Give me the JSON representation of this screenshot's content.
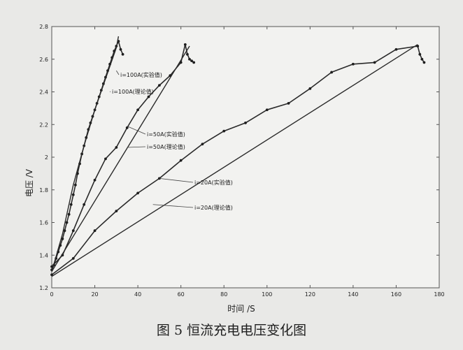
{
  "caption": "图 5   恒流充电电压变化图",
  "chart_data": {
    "type": "line",
    "xlabel": "时间 /S",
    "ylabel": "电压 /V",
    "xlim": [
      0,
      180
    ],
    "ylim": [
      1.2,
      2.8
    ],
    "xticks": [
      "0",
      "20",
      "40",
      "60",
      "80",
      "100",
      "120",
      "140",
      "160",
      "180"
    ],
    "yticks": [
      "1.2",
      "1.4",
      "1.6",
      "1.8",
      "2",
      "2.2",
      "2.4",
      "2.6",
      "2.8"
    ],
    "grid": false,
    "legend": "inline labels",
    "series": [
      {
        "name": "i=100A(实验值)",
        "x": [
          0,
          1,
          2,
          3,
          4,
          5,
          6,
          7,
          8,
          9,
          10,
          11,
          12,
          13,
          14,
          15,
          16,
          17,
          18,
          19,
          20,
          21,
          22,
          23,
          24,
          25,
          26,
          27,
          28,
          29,
          30,
          31,
          32,
          33
        ],
        "y": [
          1.31,
          1.34,
          1.38,
          1.42,
          1.46,
          1.5,
          1.55,
          1.6,
          1.65,
          1.71,
          1.77,
          1.83,
          1.9,
          1.96,
          2.02,
          2.07,
          2.12,
          2.17,
          2.21,
          2.25,
          2.29,
          2.33,
          2.37,
          2.41,
          2.45,
          2.49,
          2.53,
          2.57,
          2.61,
          2.65,
          2.68,
          2.71,
          2.66,
          2.63
        ]
      },
      {
        "name": "i=100A(理论值)",
        "x": [
          0,
          5,
          10,
          15,
          20,
          25,
          30,
          31
        ],
        "y": [
          1.3,
          1.53,
          1.83,
          2.07,
          2.29,
          2.48,
          2.67,
          2.74
        ]
      },
      {
        "name": "i=50A(实验值)",
        "x": [
          0,
          5,
          10,
          15,
          20,
          25,
          30,
          35,
          40,
          45,
          50,
          55,
          60,
          62,
          63,
          64,
          65,
          66
        ],
        "y": [
          1.33,
          1.4,
          1.55,
          1.71,
          1.86,
          1.99,
          2.06,
          2.18,
          2.29,
          2.37,
          2.44,
          2.5,
          2.58,
          2.69,
          2.63,
          2.6,
          2.59,
          2.58
        ]
      },
      {
        "name": "i=50A(理论值)",
        "x": [
          0,
          64
        ],
        "y": [
          1.3,
          2.68
        ]
      },
      {
        "name": "i=20A(实验值)",
        "x": [
          0,
          10,
          20,
          30,
          40,
          50,
          60,
          70,
          80,
          90,
          100,
          110,
          120,
          130,
          140,
          150,
          160,
          170,
          171,
          172,
          173
        ],
        "y": [
          1.28,
          1.38,
          1.55,
          1.67,
          1.78,
          1.87,
          1.98,
          2.08,
          2.16,
          2.21,
          2.29,
          2.33,
          2.42,
          2.52,
          2.57,
          2.58,
          2.66,
          2.68,
          2.63,
          2.6,
          2.58
        ]
      },
      {
        "name": "i=20A(理论值)",
        "x": [
          0,
          170
        ],
        "y": [
          1.27,
          2.69
        ]
      }
    ]
  }
}
